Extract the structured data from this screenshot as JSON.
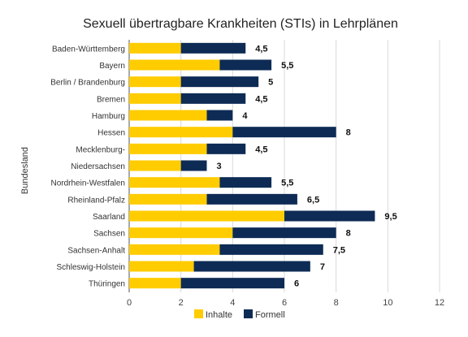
{
  "chart_data": {
    "type": "bar",
    "orientation": "horizontal",
    "stacked": true,
    "title": "Sexuell übertragbare Krankheiten (STIs) in Lehrplänen",
    "ylabel": "Bundesland",
    "xlabel": "",
    "xlim": [
      0,
      12
    ],
    "xticks": [
      "0",
      "2",
      "4",
      "6",
      "8",
      "10",
      "12"
    ],
    "grid": "vertical",
    "legend_position": "bottom",
    "categories": [
      "Baden-Württemberg",
      "Bayern",
      "Berlin / Brandenburg",
      "Bremen",
      "Hamburg",
      "Hessen",
      "Mecklenburg-",
      "Niedersachsen",
      "Nordrhein-Westfalen",
      "Rheinland-Pfalz",
      "Saarland",
      "Sachsen",
      "Sachsen-Anhalt",
      "Schleswig-Holstein",
      "Thüringen"
    ],
    "series": [
      {
        "name": "Inhalte",
        "color": "#ffcc00",
        "values": [
          2,
          3.5,
          2,
          2,
          3,
          4,
          3,
          2,
          3.5,
          3,
          6,
          4,
          3.5,
          2.5,
          2
        ]
      },
      {
        "name": "Formell",
        "color": "#0d2b55",
        "values": [
          2.5,
          2,
          3,
          2.5,
          1,
          4,
          1.5,
          1,
          2,
          3.5,
          3.5,
          4,
          4,
          4.5,
          4
        ]
      }
    ],
    "total_labels": [
      "4,5",
      "5,5",
      "5",
      "4,5",
      "4",
      "8",
      "4,5",
      "3",
      "5,5",
      "6,5",
      "9,5",
      "8",
      "7,5",
      "7",
      "6"
    ]
  }
}
